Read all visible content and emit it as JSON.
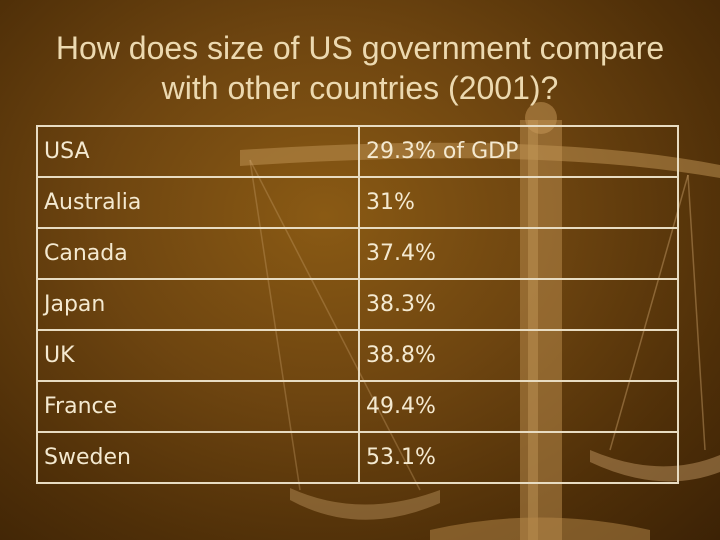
{
  "slide": {
    "title": "How does size of US government compare with other countries (2001)?"
  },
  "table": {
    "rows": [
      {
        "country": "USA",
        "value": "29.3% of GDP"
      },
      {
        "country": "Australia",
        "value": "31%"
      },
      {
        "country": "Canada",
        "value": "37.4%"
      },
      {
        "country": "Japan",
        "value": "38.3%"
      },
      {
        "country": "UK",
        "value": "38.8%"
      },
      {
        "country": "France",
        "value": "49.4%"
      },
      {
        "country": "Sweden",
        "value": "53.1%"
      }
    ]
  },
  "background": {
    "image": "balance-scale-icon",
    "colors": {
      "base": "#6e4510",
      "dark": "#3c2205",
      "text": "#f4e9d0",
      "border": "#e8dcc2"
    }
  }
}
